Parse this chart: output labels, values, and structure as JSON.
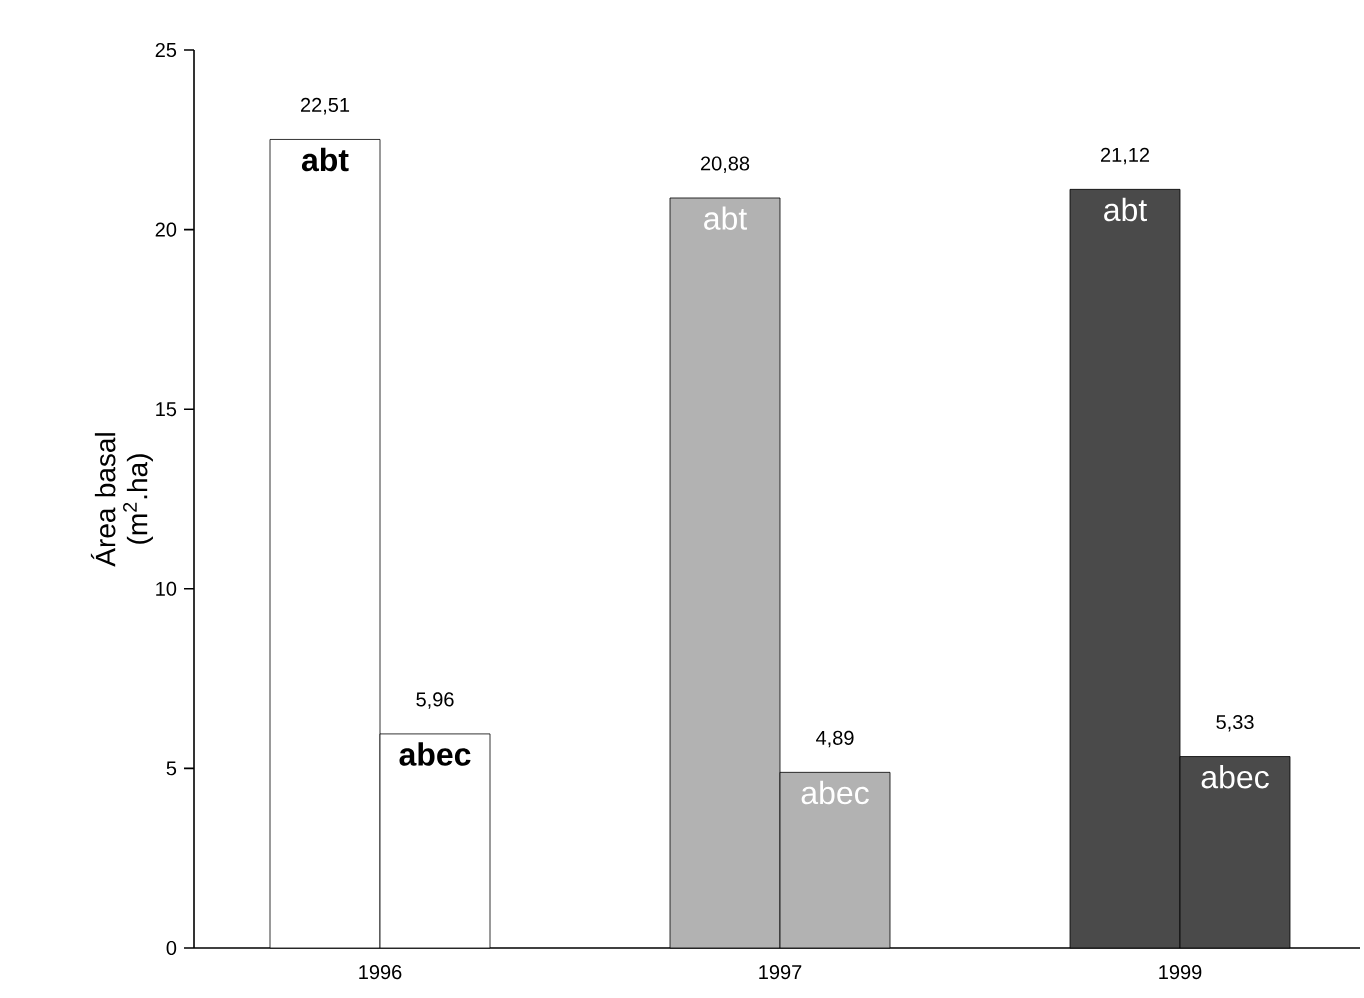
{
  "chart_data": {
    "type": "bar",
    "ylabel": "Área basal (m$^{2}$.ha)",
    "categories": [
      "1996",
      "1997",
      "1999"
    ],
    "series": [
      {
        "name": "abt",
        "colors": [
          "#ffffff",
          "#b2b2b2",
          "#4a4a4a"
        ],
        "values": [
          22.51,
          20.88,
          21.12
        ],
        "value_labels": [
          "22,51",
          "20,88",
          "21,12"
        ]
      },
      {
        "name": "abec",
        "colors": [
          "#ffffff",
          "#b2b2b2",
          "#4a4a4a"
        ],
        "values": [
          5.96,
          4.89,
          5.33
        ],
        "value_labels": [
          "5,96",
          "4,89",
          "5,33"
        ]
      }
    ],
    "ylim": [
      0,
      25
    ],
    "yticks": [
      0,
      5,
      10,
      15,
      20,
      25
    ]
  }
}
